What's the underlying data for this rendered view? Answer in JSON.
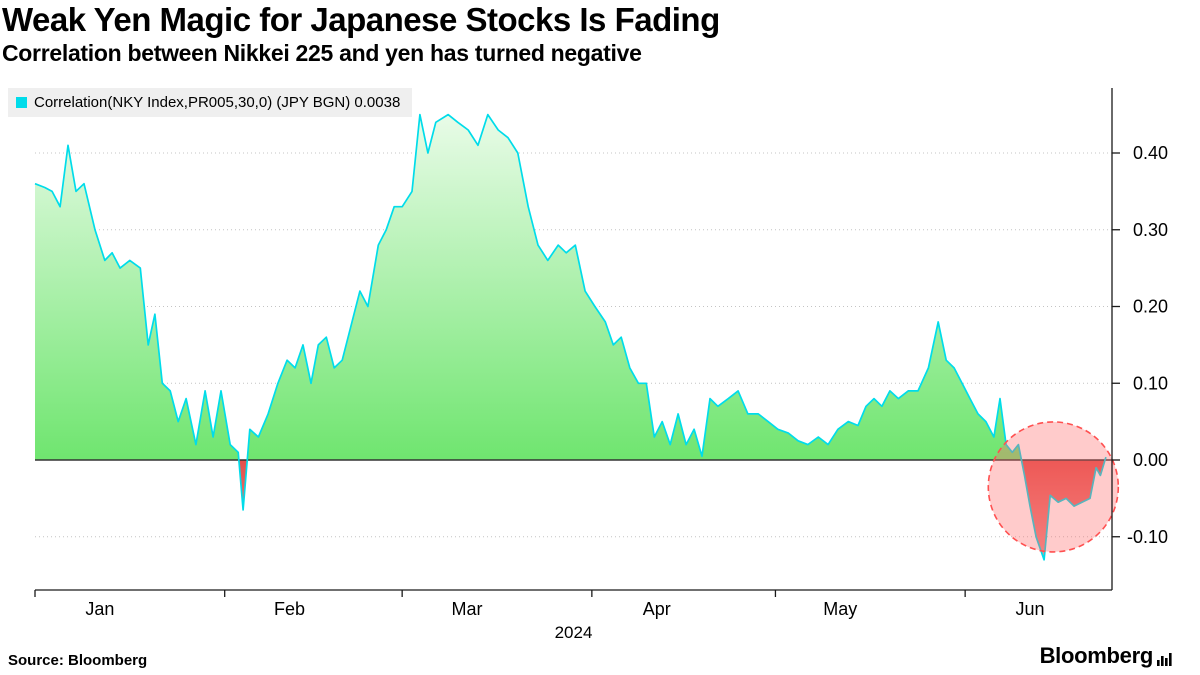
{
  "header": {
    "title": "Weak Yen Magic for Japanese Stocks Is Fading",
    "subtitle": "Correlation between Nikkei 225 and yen has turned negative"
  },
  "legend": {
    "swatch_color": "#00DCEA",
    "label": "Correlation(NKY Index,PR005,30,0) (JPY BGN) 0.0038"
  },
  "footer": {
    "source": "Source: Bloomberg",
    "logo": "Bloomberg"
  },
  "chart_data": {
    "type": "area",
    "title": "Weak Yen Magic for Japanese Stocks Is Fading",
    "subtitle": "Correlation between Nikkei 225 and yen has turned negative",
    "legend_position": "top-left",
    "grid": "horizontal-dotted",
    "x_unit": "days_from_jan1_2024",
    "x_domain": [
      0,
      176
    ],
    "ylim": [
      -0.17,
      0.485
    ],
    "y_ticks": [
      {
        "value": 0.4,
        "label": "0.40"
      },
      {
        "value": 0.3,
        "label": "0.30"
      },
      {
        "value": 0.2,
        "label": "0.20"
      },
      {
        "value": 0.1,
        "label": "0.10"
      },
      {
        "value": 0.0,
        "label": "0.00"
      },
      {
        "value": -0.1,
        "label": "-0.10"
      }
    ],
    "x_months": [
      {
        "label": "Jan",
        "start_day": 0,
        "label_day": 10.6
      },
      {
        "label": "Feb",
        "start_day": 31,
        "label_day": 41.6
      },
      {
        "label": "Mar",
        "start_day": 60,
        "label_day": 70.6
      },
      {
        "label": "Apr",
        "start_day": 91,
        "label_day": 101.6
      },
      {
        "label": "May",
        "start_day": 121,
        "label_day": 131.6
      },
      {
        "label": "Jun",
        "start_day": 152,
        "label_day": 162.6
      }
    ],
    "year_label": "2024",
    "series": [
      {
        "name": "Correlation(NKY Index,PR005,30,0) (JPY BGN)",
        "last_value": 0.0038,
        "points": [
          [
            0,
            0.36
          ],
          [
            1.6,
            0.355
          ],
          [
            2.8,
            0.35
          ],
          [
            4.1,
            0.33
          ],
          [
            5.4,
            0.41
          ],
          [
            6.7,
            0.35
          ],
          [
            8,
            0.36
          ],
          [
            9.8,
            0.3
          ],
          [
            11.4,
            0.26
          ],
          [
            12.6,
            0.27
          ],
          [
            13.9,
            0.25
          ],
          [
            15.5,
            0.26
          ],
          [
            17.2,
            0.25
          ],
          [
            18.5,
            0.15
          ],
          [
            19.6,
            0.19
          ],
          [
            20.8,
            0.1
          ],
          [
            22.1,
            0.09
          ],
          [
            23.4,
            0.05
          ],
          [
            24.7,
            0.08
          ],
          [
            26.3,
            0.02
          ],
          [
            27.8,
            0.09
          ],
          [
            29.1,
            0.03
          ],
          [
            30.4,
            0.09
          ],
          [
            31.9,
            0.02
          ],
          [
            33.2,
            0.01
          ],
          [
            34,
            -0.065
          ],
          [
            35.1,
            0.04
          ],
          [
            36.5,
            0.03
          ],
          [
            38.1,
            0.06
          ],
          [
            39.7,
            0.1
          ],
          [
            41.2,
            0.13
          ],
          [
            42.5,
            0.12
          ],
          [
            43.8,
            0.15
          ],
          [
            45.1,
            0.1
          ],
          [
            46.3,
            0.15
          ],
          [
            47.6,
            0.16
          ],
          [
            48.9,
            0.12
          ],
          [
            50.2,
            0.13
          ],
          [
            51.8,
            0.18
          ],
          [
            53.1,
            0.22
          ],
          [
            54.4,
            0.2
          ],
          [
            56.1,
            0.28
          ],
          [
            57.4,
            0.3
          ],
          [
            58.7,
            0.33
          ],
          [
            60,
            0.33
          ],
          [
            61.6,
            0.35
          ],
          [
            62.9,
            0.45
          ],
          [
            64.2,
            0.4
          ],
          [
            65.5,
            0.44
          ],
          [
            67.5,
            0.45
          ],
          [
            69.1,
            0.44
          ],
          [
            70.8,
            0.43
          ],
          [
            72.4,
            0.41
          ],
          [
            74,
            0.45
          ],
          [
            75.7,
            0.43
          ],
          [
            77.3,
            0.42
          ],
          [
            78.9,
            0.4
          ],
          [
            80.6,
            0.33
          ],
          [
            82.2,
            0.28
          ],
          [
            83.8,
            0.26
          ],
          [
            85.5,
            0.28
          ],
          [
            86.8,
            0.27
          ],
          [
            88.3,
            0.28
          ],
          [
            89.9,
            0.22
          ],
          [
            91.5,
            0.2
          ],
          [
            93.2,
            0.18
          ],
          [
            94.5,
            0.15
          ],
          [
            95.8,
            0.16
          ],
          [
            97.2,
            0.12
          ],
          [
            98.6,
            0.1
          ],
          [
            99.9,
            0.1
          ],
          [
            101.2,
            0.03
          ],
          [
            102.5,
            0.05
          ],
          [
            103.8,
            0.02
          ],
          [
            105.1,
            0.06
          ],
          [
            106.4,
            0.02
          ],
          [
            107.7,
            0.04
          ],
          [
            109,
            0.005
          ],
          [
            110.3,
            0.08
          ],
          [
            111.6,
            0.07
          ],
          [
            113.3,
            0.08
          ],
          [
            114.9,
            0.09
          ],
          [
            116.5,
            0.06
          ],
          [
            118.2,
            0.06
          ],
          [
            119.8,
            0.05
          ],
          [
            121.4,
            0.04
          ],
          [
            123.1,
            0.035
          ],
          [
            124.7,
            0.025
          ],
          [
            126.3,
            0.02
          ],
          [
            128,
            0.03
          ],
          [
            129.6,
            0.02
          ],
          [
            131.2,
            0.04
          ],
          [
            132.9,
            0.05
          ],
          [
            134.5,
            0.045
          ],
          [
            135.8,
            0.07
          ],
          [
            137.1,
            0.08
          ],
          [
            138.4,
            0.07
          ],
          [
            139.7,
            0.09
          ],
          [
            141.1,
            0.08
          ],
          [
            142.7,
            0.09
          ],
          [
            144.3,
            0.09
          ],
          [
            146,
            0.12
          ],
          [
            147.6,
            0.18
          ],
          [
            148.9,
            0.13
          ],
          [
            150.2,
            0.12
          ],
          [
            151.5,
            0.1
          ],
          [
            152.8,
            0.08
          ],
          [
            154.1,
            0.06
          ],
          [
            155.4,
            0.05
          ],
          [
            156.7,
            0.03
          ],
          [
            157.7,
            0.08
          ],
          [
            158.7,
            0.02
          ],
          [
            159.7,
            0.01
          ],
          [
            160.7,
            0.02
          ],
          [
            161.7,
            -0.02
          ],
          [
            162.6,
            -0.06
          ],
          [
            163.6,
            -0.1
          ],
          [
            164.9,
            -0.13
          ],
          [
            165.9,
            -0.046
          ],
          [
            167.2,
            -0.055
          ],
          [
            168.5,
            -0.05
          ],
          [
            169.8,
            -0.06
          ],
          [
            171.1,
            -0.055
          ],
          [
            172.4,
            -0.05
          ],
          [
            173.4,
            -0.01
          ],
          [
            174.1,
            -0.02
          ],
          [
            175,
            0.0038
          ]
        ]
      }
    ],
    "annotation_circle": {
      "center_day": 166.4,
      "center_value": -0.035,
      "radius_px": 65
    },
    "colors": {
      "line": "#00DCEA",
      "fill_positive_top": "#F2FDF1",
      "fill_positive_bottom": "#6FE56F",
      "fill_negative_top": "#E4504C",
      "fill_negative_bottom": "#F2928F",
      "grid": "#C4C4C4",
      "zero_line": "#333333",
      "axis": "#1A1A1A",
      "circle_stroke": "#FF5050",
      "circle_fill": "#FF6B6B"
    }
  }
}
